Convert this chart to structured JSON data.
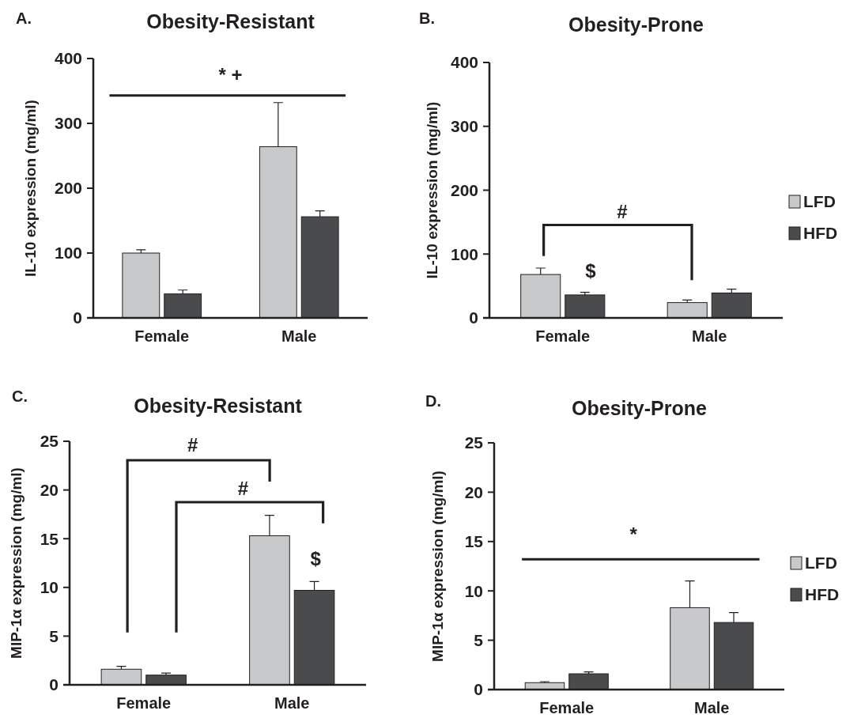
{
  "chart_data": [
    {
      "type": "bar",
      "title": "Obesity-Resistant",
      "ylabel": "IL-10 expression (mg/ml)",
      "categories": [
        "Female",
        "Male"
      ],
      "ylim": [
        0,
        400
      ],
      "yticks": [
        0,
        100,
        200,
        300,
        400
      ],
      "legend": false,
      "grid": false,
      "annotations": [
        "A.",
        "* +"
      ],
      "series": [
        {
          "color": "#c8c9cb",
          "values": [
            100,
            264
          ],
          "errors": [
            [
              100,
              105
            ],
            [
              264,
              332
            ]
          ]
        },
        {
          "color": "#4a4b4d",
          "values": [
            37,
            156
          ],
          "errors": [
            [
              37,
              43
            ],
            [
              156,
              165
            ]
          ]
        }
      ]
    },
    {
      "type": "bar",
      "title": "Obesity-Prone",
      "ylabel": "IL-10 expression (mg/ml)",
      "categories": [
        "Female",
        "Male"
      ],
      "ylim": [
        0,
        400
      ],
      "yticks": [
        0,
        100,
        200,
        300,
        400
      ],
      "legend": "right",
      "grid": false,
      "annotations": [
        "B.",
        "#",
        "$"
      ],
      "series": [
        {
          "name": "LFD",
          "color": "#c8c9cb",
          "values": [
            68,
            24
          ],
          "errors": [
            [
              68,
              78
            ],
            [
              24,
              28
            ]
          ]
        },
        {
          "name": "HFD",
          "color": "#4a4b4d",
          "values": [
            36,
            39
          ],
          "errors": [
            [
              36,
              40
            ],
            [
              39,
              45
            ]
          ]
        }
      ]
    },
    {
      "type": "bar",
      "title": "Obesity-Resistant",
      "ylabel": "MIP-1α expression (mg/ml)",
      "categories": [
        "Female",
        "Male"
      ],
      "ylim": [
        0,
        25
      ],
      "yticks": [
        0,
        5,
        10,
        15,
        20,
        25
      ],
      "legend": false,
      "grid": false,
      "annotations": [
        "C.",
        "#",
        "#",
        "$"
      ],
      "series": [
        {
          "color": "#c8c9cb",
          "values": [
            1.6,
            15.3
          ],
          "errors": [
            [
              1.6,
              1.9
            ],
            [
              15.3,
              17.4
            ]
          ]
        },
        {
          "color": "#4a4b4d",
          "values": [
            1.0,
            9.7
          ],
          "errors": [
            [
              1.0,
              1.2
            ],
            [
              9.7,
              10.6
            ]
          ]
        }
      ]
    },
    {
      "type": "bar",
      "title": "Obesity-Prone",
      "ylabel": "MIP-1α expression (mg/ml)",
      "categories": [
        "Female",
        "Male"
      ],
      "ylim": [
        0,
        25
      ],
      "yticks": [
        0,
        5,
        10,
        15,
        20,
        25
      ],
      "legend": "right",
      "grid": false,
      "annotations": [
        "D.",
        "*"
      ],
      "series": [
        {
          "name": "LFD",
          "color": "#c8c9cb",
          "values": [
            0.7,
            8.3
          ],
          "errors": [
            [
              0.7,
              0.8
            ],
            [
              8.3,
              11.0
            ]
          ]
        },
        {
          "name": "HFD",
          "color": "#4a4b4d",
          "values": [
            1.6,
            6.8
          ],
          "errors": [
            [
              1.6,
              1.8
            ],
            [
              6.8,
              7.8
            ]
          ]
        }
      ]
    }
  ]
}
